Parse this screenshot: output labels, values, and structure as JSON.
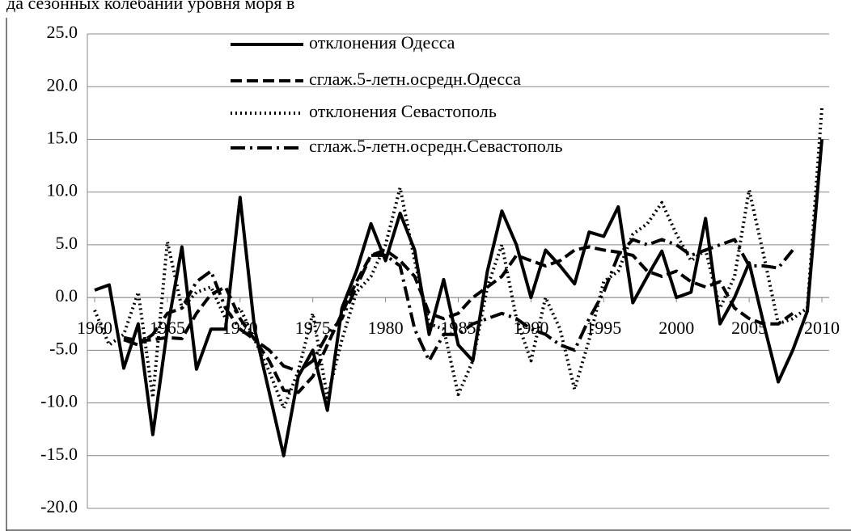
{
  "chart_data": {
    "type": "line",
    "title": "да сезонных колебаний уровня моря в",
    "x": [
      1960,
      1961,
      1962,
      1963,
      1964,
      1965,
      1966,
      1967,
      1968,
      1969,
      1970,
      1971,
      1972,
      1973,
      1974,
      1975,
      1976,
      1977,
      1978,
      1979,
      1980,
      1981,
      1982,
      1983,
      1984,
      1985,
      1986,
      1987,
      1988,
      1989,
      1990,
      1991,
      1992,
      1993,
      1994,
      1995,
      1996,
      1997,
      1998,
      1999,
      2000,
      2001,
      2002,
      2003,
      2004,
      2005,
      2006,
      2007,
      2008,
      2009,
      2010
    ],
    "xlim": [
      1959.5,
      2010.5
    ],
    "xticks": [
      1960,
      1965,
      1970,
      1975,
      1980,
      1985,
      1990,
      1995,
      2000,
      2005,
      2010
    ],
    "ylim": [
      -20,
      25
    ],
    "yticks": [
      {
        "value": -20,
        "label": "-20.0"
      },
      {
        "value": -15,
        "label": "-15.0"
      },
      {
        "value": -10,
        "label": "-10.0"
      },
      {
        "value": -5,
        "label": "-5.0"
      },
      {
        "value": 0,
        "label": "0.0"
      },
      {
        "value": 5,
        "label": "5.0"
      },
      {
        "value": 10,
        "label": "10.0"
      },
      {
        "value": 15,
        "label": "15.0"
      },
      {
        "value": 20,
        "label": "20.0"
      },
      {
        "value": 25,
        "label": "25.0"
      }
    ],
    "grid": true,
    "series": [
      {
        "name": "отклонения Одесса",
        "color": "#000000",
        "dash": "solid",
        "values": [
          0.7,
          1.2,
          -6.7,
          -2.5,
          -13,
          -3,
          4.8,
          -6.8,
          -3,
          -3,
          9.5,
          -3,
          -9,
          -15,
          -7.5,
          -5,
          -10.7,
          -1,
          2.5,
          7,
          3.5,
          8,
          4.5,
          -3.5,
          1.7,
          -4.5,
          -6,
          2.5,
          8.2,
          5,
          0,
          4.5,
          3,
          1.3,
          6.2,
          5.8,
          8.6,
          -0.5,
          2,
          4.4,
          0,
          0.5,
          7.5,
          -2.5,
          0,
          3.3,
          -2.5,
          -8,
          -5,
          -1.3,
          15
        ]
      },
      {
        "name": "сглаж.5-летн.осредн.Одесса",
        "color": "#000000",
        "dash": "dashed",
        "values": [
          null,
          null,
          -3.8,
          -4.1,
          -4,
          -3.8,
          -3.9,
          -1.5,
          0.3,
          1,
          -2,
          -4,
          -6,
          -8.8,
          -9,
          -7.5,
          -4.5,
          -1.5,
          1.5,
          4,
          4.5,
          3.5,
          2,
          -1.5,
          -2,
          -1.5,
          0,
          1,
          2,
          4,
          3.5,
          3,
          3.5,
          4.5,
          4.8,
          4.5,
          4.3,
          4,
          2.5,
          2,
          2.5,
          1.5,
          1,
          1.5,
          -1,
          -2,
          -2.5,
          -2.5,
          -1.5,
          null,
          null
        ]
      },
      {
        "name": "отклонения Севастополь",
        "color": "#000000",
        "dash": "dotted",
        "values": [
          -1.2,
          -4.5,
          -3.5,
          0.5,
          -9.5,
          5.3,
          -1,
          0.5,
          1,
          -2,
          -1,
          -4,
          -7,
          -10.5,
          -7,
          -1.5,
          -9.5,
          -4,
          0.5,
          2,
          5,
          10.4,
          3.5,
          -2.5,
          -3,
          -9.2,
          -6,
          1,
          5,
          -2,
          -6,
          0,
          -3,
          -8.7,
          -4,
          1.5,
          2.5,
          6,
          7,
          9,
          6,
          3.5,
          4.5,
          -1,
          2,
          10.2,
          4,
          -2.5,
          -2,
          -1,
          18
        ]
      },
      {
        "name": "сглаж.5-летн.осредн.Севастополь",
        "color": "#000000",
        "dash": "dashdot",
        "values": [
          null,
          null,
          -4,
          -4.5,
          -3.5,
          -1.5,
          -1,
          1.5,
          2.5,
          -1,
          -3,
          -4,
          -5,
          -6.5,
          -7,
          -6,
          -3.5,
          -2,
          1,
          4,
          4,
          3,
          -3,
          -6,
          -3.5,
          -3.5,
          -2.5,
          -2,
          -1.5,
          -2,
          -3,
          -3.5,
          -4.5,
          -5,
          -2,
          0.5,
          4,
          5.5,
          5,
          5.5,
          5,
          4,
          4.5,
          5,
          5.5,
          3,
          3,
          2.8,
          4.5,
          null,
          null
        ]
      }
    ],
    "legend": "top"
  }
}
